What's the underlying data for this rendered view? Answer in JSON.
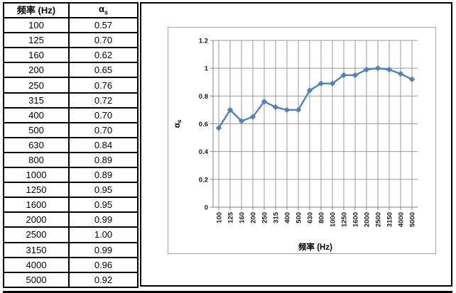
{
  "table": {
    "freq_header": "频率 (Hz)",
    "alpha_header_base": "α",
    "alpha_header_sub": "s",
    "rows": [
      {
        "freq": "100",
        "alpha": "0.57"
      },
      {
        "freq": "125",
        "alpha": "0.70"
      },
      {
        "freq": "160",
        "alpha": "0.62"
      },
      {
        "freq": "200",
        "alpha": "0.65"
      },
      {
        "freq": "250",
        "alpha": "0.76"
      },
      {
        "freq": "315",
        "alpha": "0.72"
      },
      {
        "freq": "400",
        "alpha": "0.70"
      },
      {
        "freq": "500",
        "alpha": "0.70"
      },
      {
        "freq": "630",
        "alpha": "0.84"
      },
      {
        "freq": "800",
        "alpha": "0.89"
      },
      {
        "freq": "1000",
        "alpha": "0.89"
      },
      {
        "freq": "1250",
        "alpha": "0.95"
      },
      {
        "freq": "1600",
        "alpha": "0.95"
      },
      {
        "freq": "2000",
        "alpha": "0.99"
      },
      {
        "freq": "2500",
        "alpha": "1.00"
      },
      {
        "freq": "3150",
        "alpha": "0.99"
      },
      {
        "freq": "4000",
        "alpha": "0.96"
      },
      {
        "freq": "5000",
        "alpha": "0.92"
      }
    ]
  },
  "chart_data": {
    "type": "line",
    "title": "",
    "categories": [
      "100",
      "125",
      "160",
      "200",
      "250",
      "315",
      "400",
      "500",
      "630",
      "800",
      "1000",
      "1250",
      "1600",
      "2000",
      "2500",
      "3150",
      "4000",
      "5000"
    ],
    "values": [
      0.57,
      0.7,
      0.62,
      0.65,
      0.76,
      0.72,
      0.7,
      0.7,
      0.84,
      0.89,
      0.89,
      0.95,
      0.95,
      0.99,
      1.0,
      0.99,
      0.96,
      0.92
    ],
    "xlabel": "频率 (Hz)",
    "ylabel_base": "α",
    "ylabel_sub": "s",
    "ylim": [
      0,
      1.2
    ],
    "yticks": [
      0,
      0.2,
      0.4,
      0.6,
      0.8,
      1,
      1.2
    ],
    "ytick_labels": [
      "0",
      "0.2",
      "0.4",
      "0.6",
      "0.8",
      "1",
      "1.2"
    ],
    "grid": true,
    "legend": "none",
    "marker": "diamond",
    "line_color": "#4F81BD",
    "gridline_color": "#999999",
    "axis_color": "#808080",
    "chart_border_color": "#A6A6A6",
    "tick_label_color": "#1a1a1a"
  }
}
